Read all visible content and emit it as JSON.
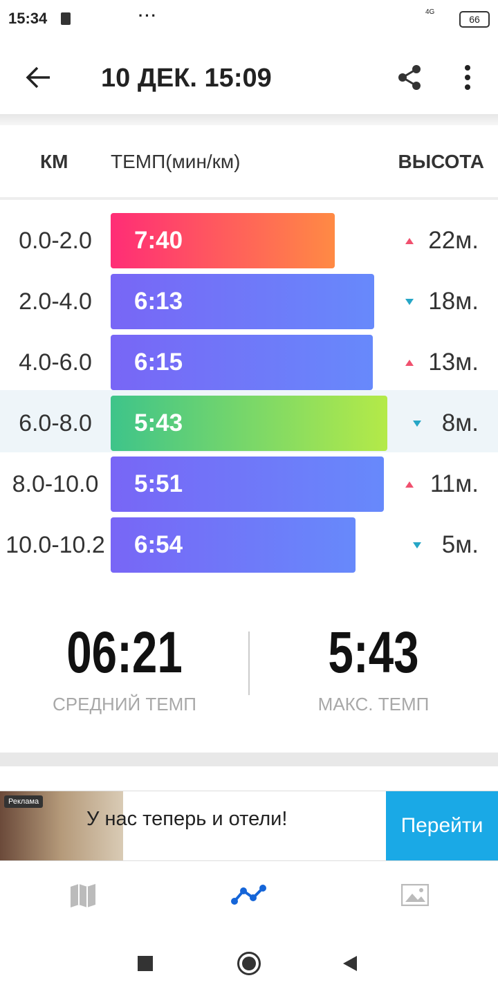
{
  "status_bar": {
    "time": "15:34",
    "network": "4G",
    "battery": "66"
  },
  "header": {
    "title": "10 ДЕК. 15:09"
  },
  "table": {
    "columns": [
      "КМ",
      "ТЕМП(мин/км)",
      "ВЫСОТА"
    ],
    "rows": [
      {
        "km": "0.0-2.0",
        "pace": "7:40",
        "elevation": "22м.",
        "trend": "up"
      },
      {
        "km": "2.0-4.0",
        "pace": "6:13",
        "elevation": "18м.",
        "trend": "down"
      },
      {
        "km": "4.0-6.0",
        "pace": "6:15",
        "elevation": "13м.",
        "trend": "up"
      },
      {
        "km": "6.0-8.0",
        "pace": "5:43",
        "elevation": "8м.",
        "trend": "down"
      },
      {
        "km": "8.0-10.0",
        "pace": "5:51",
        "elevation": "11м.",
        "trend": "up"
      },
      {
        "km": "10.0-10.2",
        "pace": "6:54",
        "elevation": "5м.",
        "trend": "down"
      }
    ]
  },
  "summary": [
    {
      "value": "06:21",
      "label": "СРЕДНИЙ ТЕМП"
    },
    {
      "value": "5:43",
      "label": "МАКС. ТЕМП"
    }
  ],
  "ad": {
    "badge": "Реклама",
    "text": "У нас теперь и отели!",
    "button": "Перейти"
  }
}
